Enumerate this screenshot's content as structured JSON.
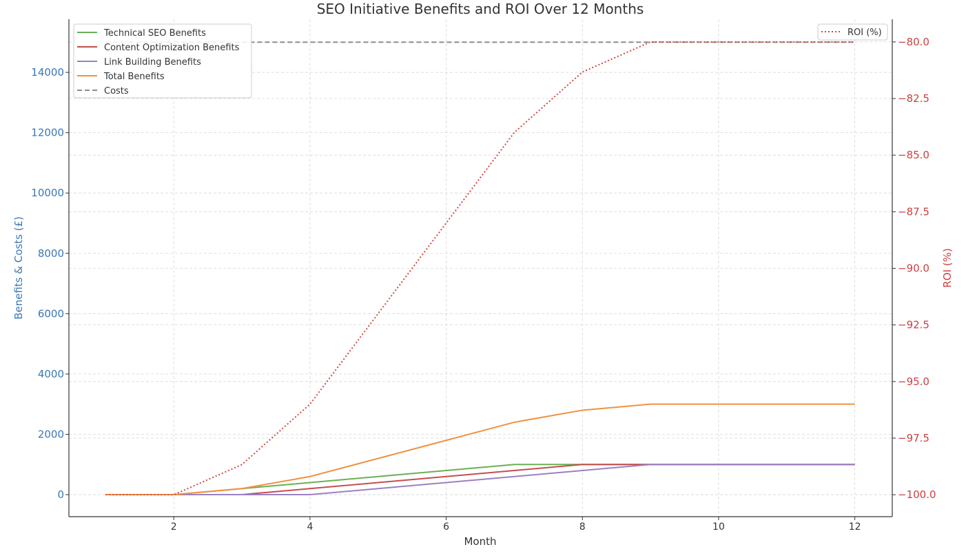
{
  "chart_data": {
    "type": "line",
    "title": "SEO Initiative Benefits and ROI Over 12 Months",
    "xlabel": "Month",
    "ylabel": "Benefits & Costs (£)",
    "y2label": "ROI (%)",
    "x": [
      1,
      2,
      3,
      4,
      5,
      6,
      7,
      8,
      9,
      10,
      11,
      12
    ],
    "xlim": [
      0.46,
      12.55
    ],
    "xticks": [
      2,
      4,
      6,
      8,
      10,
      12
    ],
    "ylim": [
      -730,
      15760
    ],
    "yticks": [
      0,
      2000,
      4000,
      6000,
      8000,
      10000,
      12000,
      14000
    ],
    "y2lim": [
      -100.97,
      -79.0
    ],
    "y2ticks": [
      "-100.0",
      "-97.5",
      "-95.0",
      "-92.5",
      "-90.0",
      "-87.5",
      "-85.0",
      "-82.5",
      "-80.0"
    ],
    "grid": true,
    "legend": "top-left",
    "legend2": "top-right",
    "series": [
      {
        "name": "Technical SEO Benefits",
        "color": "#6aaf55",
        "style": "solid",
        "values": [
          0,
          0,
          200,
          400,
          600,
          800,
          1000,
          1000,
          1000,
          1000,
          1000,
          1000
        ]
      },
      {
        "name": "Content Optimization Benefits",
        "color": "#c44e4e",
        "style": "solid",
        "values": [
          0,
          0,
          0,
          200,
          400,
          600,
          800,
          1000,
          1000,
          1000,
          1000,
          1000
        ]
      },
      {
        "name": "Link Building Benefits",
        "color": "#9a80c4",
        "style": "solid",
        "values": [
          0,
          0,
          0,
          0,
          200,
          400,
          600,
          800,
          1000,
          1000,
          1000,
          1000
        ]
      },
      {
        "name": "Total Benefits",
        "color": "#ef913f",
        "style": "solid",
        "values": [
          0,
          0,
          200,
          600,
          1200,
          1800,
          2400,
          2800,
          3000,
          3000,
          3000,
          3000
        ]
      },
      {
        "name": "Costs",
        "color": "#8c8c8c",
        "style": "dashed",
        "values": [
          15000,
          15000,
          15000,
          15000,
          15000,
          15000,
          15000,
          15000,
          15000,
          15000,
          15000,
          15000
        ]
      }
    ],
    "series2": [
      {
        "name": "ROI (%)",
        "color": "#d0473f",
        "style": "dotted",
        "axis": "right",
        "values": [
          -100,
          -100,
          -98.67,
          -96,
          -92,
          -88,
          -84,
          -81.33,
          -80,
          -80,
          -80,
          -80
        ]
      }
    ],
    "colors": {
      "left_axis": "#3a78b5",
      "right_axis": "#cc3f3f"
    }
  }
}
